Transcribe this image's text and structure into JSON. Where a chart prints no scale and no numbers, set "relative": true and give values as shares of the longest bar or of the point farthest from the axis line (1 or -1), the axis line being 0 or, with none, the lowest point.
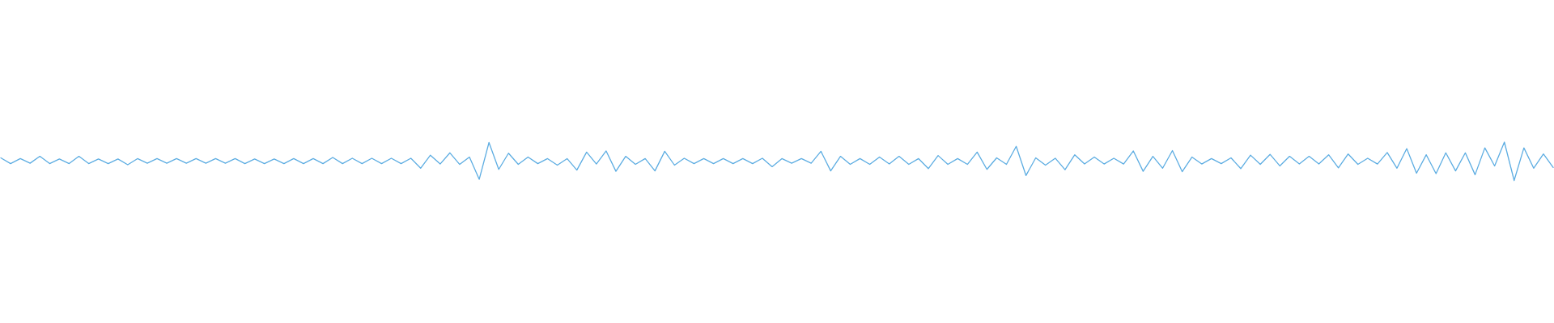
{
  "chart_data": {
    "type": "line",
    "relative": true,
    "categories": [
      null,
      null,
      null,
      null,
      null,
      null,
      null,
      null,
      null,
      null,
      null,
      null,
      null,
      null,
      null,
      null,
      null,
      null,
      null,
      null,
      null,
      null,
      null,
      null,
      null,
      null,
      null,
      null,
      null,
      null,
      null,
      null,
      null,
      null,
      null,
      null,
      null,
      null,
      null,
      null,
      null,
      null,
      null,
      null,
      null,
      null,
      null,
      null,
      null,
      null,
      null,
      null,
      null,
      null,
      null,
      null,
      null,
      null,
      null,
      null,
      null,
      null,
      null,
      null,
      null,
      null,
      null,
      null,
      null,
      null,
      null,
      null,
      null,
      null,
      null,
      null,
      null,
      null,
      null,
      null,
      null,
      null,
      null,
      null,
      null,
      null,
      null,
      null,
      null,
      null,
      null,
      null,
      null,
      null,
      null,
      null,
      null,
      null,
      null,
      null,
      null,
      null,
      null,
      null,
      null,
      null,
      null,
      null,
      null,
      null,
      null,
      null,
      null,
      null,
      null,
      null,
      null,
      null,
      null,
      null,
      null,
      null,
      null,
      null,
      null,
      null,
      null,
      null,
      null,
      null,
      null,
      null,
      null,
      null,
      null,
      null,
      null,
      null,
      null,
      null,
      null,
      null,
      null,
      null,
      null,
      null,
      null,
      null,
      null,
      null,
      null,
      null,
      null,
      null,
      null,
      null,
      null,
      null,
      null,
      null
    ],
    "series": [
      {
        "color": "#5dade2",
        "values": [
          0.59,
          0.44,
          0.57,
          0.45,
          0.63,
          0.44,
          0.56,
          0.44,
          0.63,
          0.44,
          0.56,
          0.44,
          0.56,
          0.41,
          0.57,
          0.45,
          0.57,
          0.45,
          0.57,
          0.45,
          0.57,
          0.45,
          0.57,
          0.45,
          0.57,
          0.44,
          0.56,
          0.44,
          0.56,
          0.44,
          0.57,
          0.44,
          0.57,
          0.44,
          0.6,
          0.44,
          0.58,
          0.44,
          0.58,
          0.44,
          0.58,
          0.44,
          0.58,
          0.32,
          0.66,
          0.43,
          0.72,
          0.42,
          0.61,
          0.03,
          0.99,
          0.29,
          0.71,
          0.42,
          0.61,
          0.44,
          0.57,
          0.4,
          0.57,
          0.27,
          0.74,
          0.43,
          0.77,
          0.24,
          0.63,
          0.42,
          0.57,
          0.25,
          0.76,
          0.4,
          0.58,
          0.44,
          0.57,
          0.44,
          0.57,
          0.44,
          0.57,
          0.44,
          0.58,
          0.36,
          0.57,
          0.45,
          0.57,
          0.45,
          0.76,
          0.25,
          0.63,
          0.42,
          0.57,
          0.42,
          0.61,
          0.43,
          0.63,
          0.42,
          0.57,
          0.31,
          0.65,
          0.42,
          0.57,
          0.42,
          0.74,
          0.29,
          0.59,
          0.42,
          0.89,
          0.13,
          0.59,
          0.4,
          0.58,
          0.28,
          0.67,
          0.43,
          0.61,
          0.43,
          0.58,
          0.43,
          0.77,
          0.24,
          0.63,
          0.32,
          0.78,
          0.23,
          0.61,
          0.43,
          0.57,
          0.44,
          0.59,
          0.31,
          0.66,
          0.42,
          0.68,
          0.38,
          0.63,
          0.43,
          0.63,
          0.43,
          0.67,
          0.33,
          0.69,
          0.42,
          0.58,
          0.43,
          0.73,
          0.32,
          0.83,
          0.19,
          0.67,
          0.18,
          0.72,
          0.25,
          0.72,
          0.15,
          0.85,
          0.38,
          1.0,
          0,
          0.85,
          0.32,
          0.69,
          0.34
        ]
      }
    ]
  }
}
